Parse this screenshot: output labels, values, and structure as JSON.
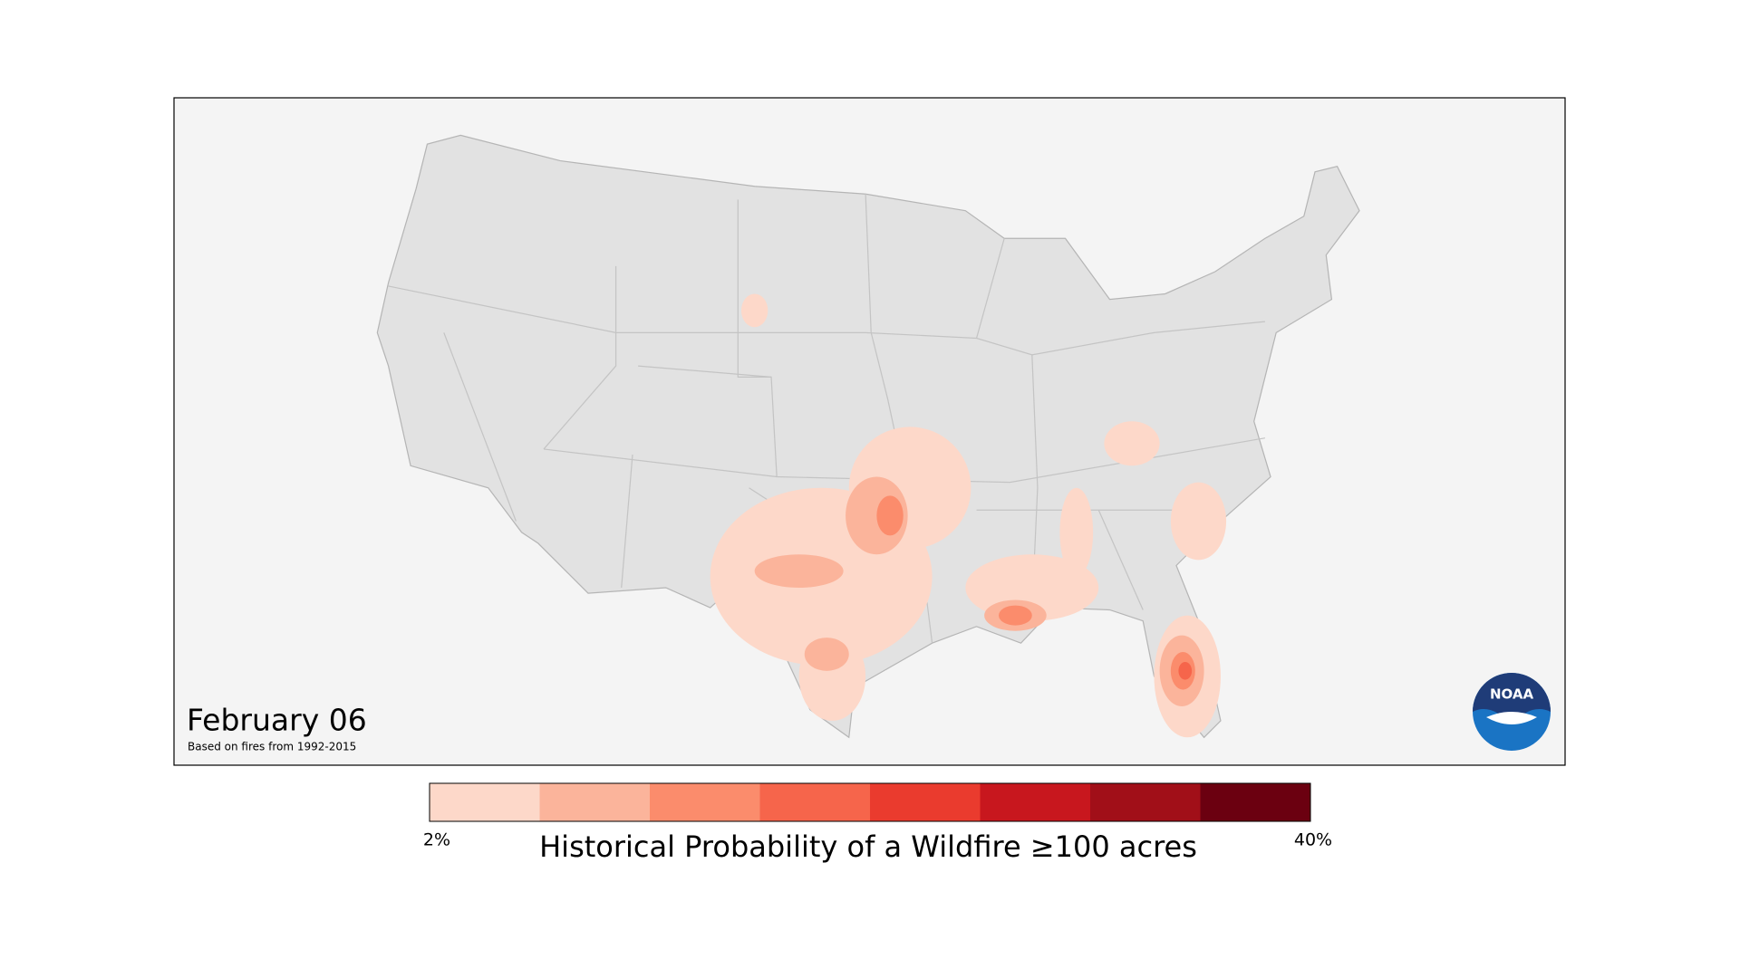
{
  "title": "February 06",
  "subtitle": "Based on fires from 1992-2015",
  "legend": {
    "title": "Historical Probability of a Wildfire ≥100 acres",
    "min_label": "2%",
    "max_label": "40%",
    "colors": [
      "#fdd8c9",
      "#fbb49b",
      "#fb8c6c",
      "#f6654b",
      "#ea3b2e",
      "#c8171e",
      "#a10f18",
      "#6b0010"
    ]
  },
  "logo": {
    "text": "NOAA"
  }
}
